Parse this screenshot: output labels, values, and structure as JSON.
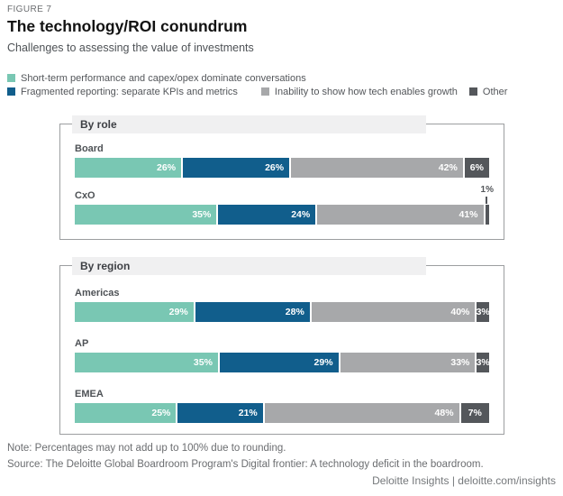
{
  "figure_label": "FIGURE 7",
  "title": "The technology/ROI conundrum",
  "subtitle": "Challenges to assessing the value of investments",
  "colors": {
    "teal": "#79C7B3",
    "blue": "#115E8C",
    "gray": "#A7A8AA",
    "dark_gray": "#54575B",
    "band_bg": "#F0F0F1",
    "box_border": "#9C9EA0",
    "label_text": "#4E5256"
  },
  "chart_data": {
    "type": "bar",
    "orientation": "horizontal",
    "stacked": true,
    "unit": "%",
    "legend_position": "top",
    "series": [
      "Short-term performance and capex/opex dominate conversations",
      "Fragmented reporting: separate KPIs and metrics",
      "Inability to show how tech enables growth",
      "Other"
    ],
    "series_colors": [
      "#79C7B3",
      "#115E8C",
      "#A7A8AA",
      "#54575B"
    ],
    "groups": [
      {
        "label": "By role",
        "rows": [
          {
            "category": "Board",
            "values": [
              26,
              26,
              42,
              6
            ]
          },
          {
            "category": "CxO",
            "values": [
              35,
              24,
              41,
              1
            ],
            "callout": {
              "segment_index": 3,
              "label": "1%"
            }
          }
        ]
      },
      {
        "label": "By region",
        "rows": [
          {
            "category": "Americas",
            "values": [
              29,
              28,
              40,
              3
            ]
          },
          {
            "category": "AP",
            "values": [
              35,
              29,
              33,
              3
            ]
          },
          {
            "category": "EMEA",
            "values": [
              25,
              21,
              48,
              7
            ]
          }
        ]
      }
    ]
  },
  "footer": {
    "note": "Note: Percentages may not add up to 100% due to rounding.",
    "source": "Source: The Deloitte Global Boardroom Program's Digital frontier: A technology deficit in the boardroom.",
    "attribution": "Deloitte Insights | deloitte.com/insights"
  }
}
